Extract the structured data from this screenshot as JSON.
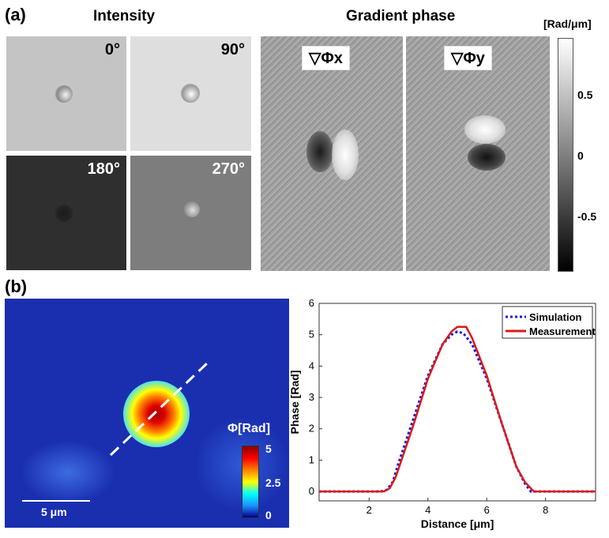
{
  "panel_a": {
    "label": "(a)",
    "intensity_title": "Intensity",
    "gradient_title": "Gradient phase",
    "angles": [
      "0°",
      "90°",
      "180°",
      "270°"
    ],
    "grad_x_label": "▽Φx",
    "grad_y_label": "▽Φy",
    "colorbar": {
      "unit": "[Rad/μm]",
      "ticks": [
        "0.5",
        "0",
        "-0.5"
      ]
    }
  },
  "panel_b": {
    "label": "(b)",
    "scale_bar": "5 μm",
    "colorbar": {
      "title": "Φ[Rad]",
      "ticks": [
        "5",
        "2.5",
        "0"
      ]
    }
  },
  "chart_data": {
    "type": "line",
    "title": "",
    "xlabel": "Distance [μm]",
    "ylabel": "Phase [Rad]",
    "xlim": [
      0.3,
      9.7
    ],
    "ylim": [
      -0.3,
      6
    ],
    "xticks": [
      2,
      4,
      6,
      8
    ],
    "yticks": [
      0,
      1,
      2,
      3,
      4,
      5,
      6
    ],
    "legend_position": "top-right",
    "series": [
      {
        "name": "Simulation",
        "color": "#1a1adc",
        "style": "dotted",
        "x": [
          0.3,
          2.4,
          2.6,
          2.8,
          3.0,
          3.5,
          4.0,
          4.5,
          4.8,
          5.0,
          5.2,
          5.5,
          6.0,
          6.5,
          7.0,
          7.3,
          7.5,
          9.7
        ],
        "y": [
          0,
          0,
          0.05,
          0.3,
          0.9,
          2.3,
          3.7,
          4.7,
          5.0,
          5.1,
          5.05,
          4.7,
          3.6,
          2.2,
          0.8,
          0.25,
          0,
          0
        ]
      },
      {
        "name": "Measurement",
        "color": "#dc1a1a",
        "style": "solid",
        "x": [
          0.3,
          2.5,
          2.7,
          2.9,
          3.1,
          3.5,
          4.0,
          4.5,
          4.8,
          5.0,
          5.3,
          5.5,
          6.0,
          6.5,
          7.0,
          7.3,
          7.6,
          9.7
        ],
        "y": [
          0,
          0,
          0.1,
          0.45,
          1.0,
          2.1,
          3.6,
          4.7,
          5.1,
          5.25,
          5.25,
          4.9,
          3.7,
          2.2,
          0.8,
          0.3,
          0,
          0
        ]
      }
    ]
  }
}
